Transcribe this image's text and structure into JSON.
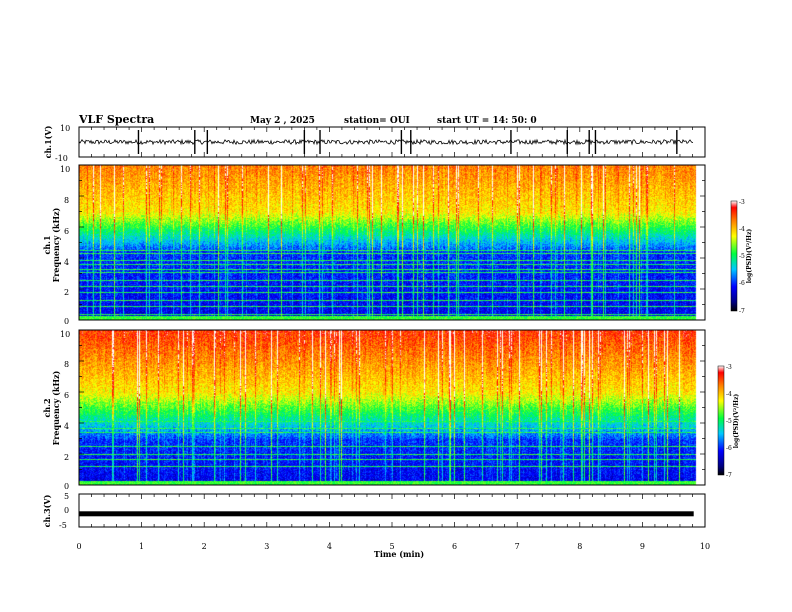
{
  "header": {
    "title": "VLF Spectra",
    "date": "May 2  , 2025",
    "station": "station= OUI",
    "start": "start  UT  =   14: 50: 0"
  },
  "chart_data": [
    {
      "type": "line",
      "name": "ch1-voltage",
      "ylabel": "ch.1(V)",
      "ylim": [
        -10,
        10
      ],
      "y_tick_labels": [
        "10",
        "-10"
      ],
      "xlim": [
        0,
        10
      ],
      "baseline": 0,
      "noise_band": [
        -1.5,
        1.5
      ],
      "spikes_min": [
        0.95,
        1.85,
        2.05,
        3.6,
        3.85,
        5.15,
        5.3,
        6.9,
        7.8,
        8.15,
        8.25,
        9.55
      ]
    },
    {
      "type": "heatmap",
      "name": "ch1-spectrogram",
      "ylabel_lines": [
        "ch.1",
        "Frequency  (kHz)"
      ],
      "ylim": [
        0,
        10
      ],
      "y_ticks": [
        0,
        2,
        4,
        6,
        8,
        10
      ],
      "xlim": [
        0,
        9.85
      ],
      "colorbar": {
        "ticks": [
          -3,
          -4,
          -5,
          -6,
          -7
        ],
        "label": "log(PSD)(V²/Hz)",
        "range": [
          -7,
          -3
        ]
      },
      "band_structure_khz": {
        "low_noise_top": 4.5,
        "transition_top": 7.0
      },
      "harmonic_lines_khz": [
        0.4,
        0.9,
        1.3,
        1.8,
        2.2,
        2.6,
        3.1,
        3.3,
        3.6,
        3.9,
        4.3,
        4.5
      ]
    },
    {
      "type": "heatmap",
      "name": "ch2-spectrogram",
      "ylabel_lines": [
        "ch.2",
        "Frequency  (kHz)"
      ],
      "ylim": [
        0,
        10
      ],
      "y_ticks": [
        0,
        2,
        4,
        6,
        8,
        10
      ],
      "xlim": [
        0,
        9.85
      ],
      "colorbar": {
        "ticks": [
          -3,
          -4,
          -5,
          -6,
          -7
        ],
        "label": "log(PSD)(V²/Hz)",
        "range": [
          -7,
          -3
        ]
      },
      "band_structure_khz": {
        "low_noise_top": 3.0,
        "transition_top": 6.0
      },
      "harmonic_lines_khz": [
        1.2,
        1.7,
        2.0,
        2.5,
        3.4,
        3.7,
        4.1
      ]
    },
    {
      "type": "line",
      "name": "ch3-voltage",
      "ylabel": "ch.3(V)",
      "ylim": [
        -5,
        5
      ],
      "y_tick_labels": [
        "5",
        "0",
        "-5"
      ],
      "xlim": [
        0,
        10
      ],
      "level": -1,
      "x_ticks": [
        0,
        1,
        2,
        3,
        4,
        5,
        6,
        7,
        8,
        9,
        10
      ],
      "xlabel": "Time  (min)"
    }
  ],
  "colors": {
    "axis": "#000000",
    "trace": "#000000"
  }
}
